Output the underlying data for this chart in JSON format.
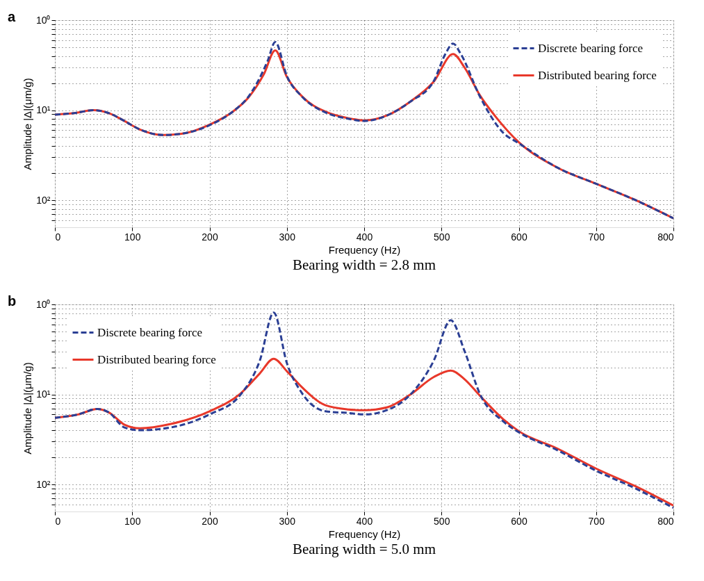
{
  "chart_data": [
    {
      "type": "line",
      "title": "Bearing width = 2.8 mm",
      "annotations": [
        "a"
      ],
      "xlabel": "Frequency (Hz)",
      "ylabel": "Amplitude |Δ|(μm/g)",
      "log": "y",
      "grid": true,
      "legend": "top right",
      "xlim": [
        0,
        800
      ],
      "xticks": [
        0,
        100,
        200,
        300,
        400,
        500,
        600,
        700,
        800
      ],
      "ylim": [
        200,
        1
      ],
      "yticks": [
        {
          "value": 1,
          "label": "10⁰"
        },
        {
          "value": 1.111,
          "label": null
        },
        {
          "value": 1.25,
          "label": null
        },
        {
          "value": 1.429,
          "label": null
        },
        {
          "value": 1.667,
          "label": null
        },
        {
          "value": 2,
          "label": null
        },
        {
          "value": 2.5,
          "label": null
        },
        {
          "value": 3.333,
          "label": null
        },
        {
          "value": 5,
          "label": null
        },
        {
          "value": 10,
          "label": "10¹"
        },
        {
          "value": 11.11,
          "label": null
        },
        {
          "value": 12.5,
          "label": null
        },
        {
          "value": 14.29,
          "label": null
        },
        {
          "value": 16.67,
          "label": null
        },
        {
          "value": 20,
          "label": null
        },
        {
          "value": 25,
          "label": null
        },
        {
          "value": 33.33,
          "label": null
        },
        {
          "value": 50,
          "label": null
        },
        {
          "value": 100,
          "label": "10²"
        },
        {
          "value": 111.1,
          "label": null
        },
        {
          "value": 125,
          "label": null
        },
        {
          "value": 142.9,
          "label": null
        },
        {
          "value": 166.7,
          "label": null
        }
      ],
      "series": [
        {
          "name": "Discrete bearing force",
          "color": "#2b3f94",
          "line_style": "dashed",
          "x": [
            0,
            25,
            50,
            70,
            90,
            110,
            140,
            170,
            200,
            230,
            250,
            275,
            285,
            300,
            320,
            350,
            380,
            400,
            430,
            460,
            490,
            505,
            515,
            525,
            550,
            580,
            600,
            650,
            700,
            750,
            800
          ],
          "values": [
            11.2,
            10.8,
            10,
            10.8,
            13.2,
            16.4,
            18.9,
            17.9,
            14.7,
            10.4,
            7.14,
            2.86,
            1.75,
            4.17,
            7.14,
            10.6,
            12.5,
            13.2,
            11.4,
            8,
            4.76,
            2.38,
            1.82,
            2.38,
            7.14,
            17.9,
            23.3,
            43.5,
            65.8,
            99,
            159
          ]
        },
        {
          "name": "Distributed bearing force",
          "color": "#e8382a",
          "line_style": "solid",
          "x": [
            0,
            25,
            50,
            70,
            90,
            110,
            140,
            170,
            200,
            230,
            250,
            270,
            285,
            300,
            320,
            350,
            380,
            400,
            430,
            460,
            490,
            515,
            530,
            550,
            570,
            600,
            650,
            700,
            750,
            800
          ],
          "values": [
            11.2,
            10.8,
            10,
            10.8,
            13.2,
            16.4,
            18.9,
            17.9,
            14.5,
            10.4,
            7.3,
            4.03,
            2.17,
            4.27,
            7.09,
            10.4,
            12.3,
            13.0,
            11.4,
            8,
            4.83,
            2.38,
            3.38,
            6.9,
            11.8,
            22.7,
            43.5,
            65.8,
            99,
            159
          ]
        }
      ]
    },
    {
      "type": "line",
      "title": "Bearing width = 5.0 mm",
      "annotations": [
        "b"
      ],
      "xlabel": "Frequency (Hz)",
      "ylabel": "Amplitude |Δ|(μm/g)",
      "log": "y",
      "grid": true,
      "legend": "top left",
      "xlim": [
        0,
        800
      ],
      "xticks": [
        0,
        100,
        200,
        300,
        400,
        500,
        600,
        700,
        800
      ],
      "ylim": [
        200,
        1
      ],
      "yticks": [
        {
          "value": 1,
          "label": "10⁰"
        },
        {
          "value": 1.111,
          "label": null
        },
        {
          "value": 1.25,
          "label": null
        },
        {
          "value": 1.429,
          "label": null
        },
        {
          "value": 1.667,
          "label": null
        },
        {
          "value": 2,
          "label": null
        },
        {
          "value": 2.5,
          "label": null
        },
        {
          "value": 3.333,
          "label": null
        },
        {
          "value": 5,
          "label": null
        },
        {
          "value": 10,
          "label": "10¹"
        },
        {
          "value": 11.11,
          "label": null
        },
        {
          "value": 12.5,
          "label": null
        },
        {
          "value": 14.29,
          "label": null
        },
        {
          "value": 16.67,
          "label": null
        },
        {
          "value": 20,
          "label": null
        },
        {
          "value": 25,
          "label": null
        },
        {
          "value": 33.33,
          "label": null
        },
        {
          "value": 50,
          "label": null
        },
        {
          "value": 100,
          "label": "10²"
        },
        {
          "value": 111.1,
          "label": null
        },
        {
          "value": 125,
          "label": null
        },
        {
          "value": 142.9,
          "label": null
        },
        {
          "value": 166.7,
          "label": null
        }
      ],
      "series": [
        {
          "name": "Discrete bearing force",
          "color": "#2b3f94",
          "line_style": "dashed",
          "x": [
            0,
            30,
            55,
            70,
            90,
            110,
            150,
            200,
            240,
            265,
            283,
            300,
            320,
            350,
            380,
            400,
            430,
            460,
            490,
            512,
            530,
            550,
            580,
            600,
            650,
            700,
            750,
            800
          ],
          "values": [
            18.2,
            16.7,
            14.5,
            15.9,
            23.3,
            25,
            23.3,
            16.7,
            10.1,
            4.22,
            1.23,
            4.48,
            9.8,
            15.4,
            16.1,
            16.7,
            14.9,
            10,
            4.22,
            1.5,
            3.33,
            10,
            20,
            26.3,
            41.7,
            70.4,
            110,
            182
          ]
        },
        {
          "name": "Distributed bearing force",
          "color": "#e8382a",
          "line_style": "solid",
          "x": [
            0,
            30,
            55,
            70,
            90,
            110,
            150,
            200,
            240,
            265,
            283,
            300,
            320,
            350,
            380,
            400,
            430,
            460,
            490,
            512,
            530,
            550,
            580,
            600,
            650,
            700,
            750,
            800
          ],
          "values": [
            18.2,
            16.7,
            14.5,
            15.9,
            21.7,
            23.8,
            21.3,
            15.4,
            9.8,
            5.85,
            4.02,
            5.52,
            8.4,
            13.2,
            14.7,
            15,
            13.9,
            10,
            6.41,
            5.43,
            6.8,
            10.4,
            18.9,
            25.6,
            40,
            66.7,
            104,
            172
          ]
        }
      ]
    }
  ]
}
